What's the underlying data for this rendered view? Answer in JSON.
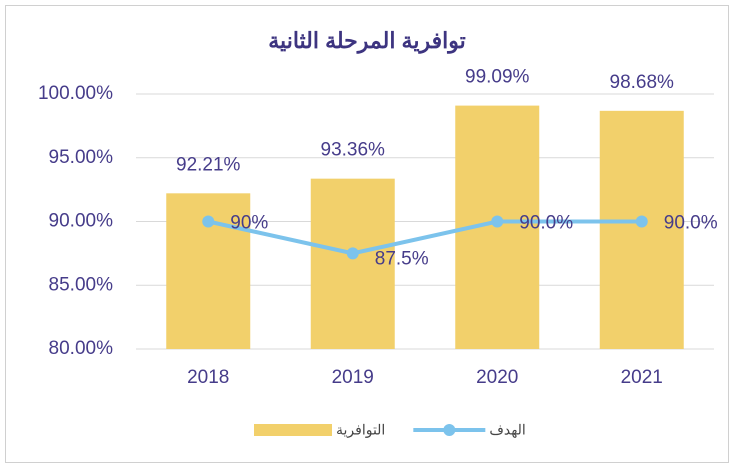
{
  "chart_data": {
    "type": "bar",
    "title": "توافرية المرحلة الثانية",
    "categories": [
      "2018",
      "2019",
      "2020",
      "2021"
    ],
    "series": [
      {
        "name": "التوافرية",
        "type": "bar",
        "color": "#f2d06b",
        "values": [
          92.21,
          93.36,
          99.09,
          98.68
        ],
        "value_labels": [
          "92.21%",
          "93.36%",
          "99.09%",
          "98.68%"
        ]
      },
      {
        "name": "الهدف",
        "type": "line",
        "color": "#7cc3ec",
        "values": [
          90,
          87.5,
          90,
          90
        ],
        "value_labels": [
          "90%",
          "87.5%",
          "90.0%",
          "90.0%"
        ]
      }
    ],
    "ylim": [
      80,
      100
    ],
    "yticks": [
      {
        "value": 80,
        "label": "80.00%"
      },
      {
        "value": 85,
        "label": "85.00%"
      },
      {
        "value": 90,
        "label": "90.00%"
      },
      {
        "value": 95,
        "label": "95.00%"
      },
      {
        "value": 100,
        "label": "100.00%"
      }
    ],
    "grid": true,
    "legend": "bottom"
  }
}
